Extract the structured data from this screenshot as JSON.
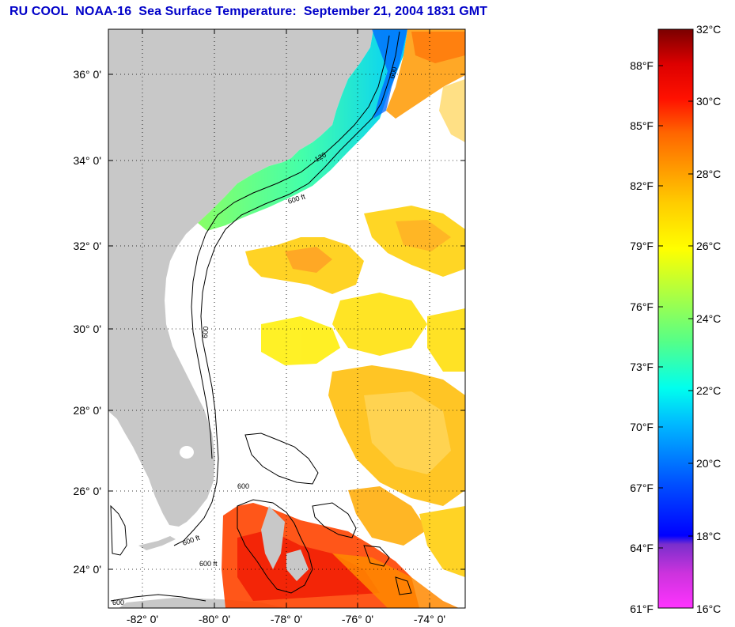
{
  "title": "RU COOL  NOAA-16  Sea Surface Temperature:  September 21, 2004 1831 GMT",
  "map": {
    "lat_labels": [
      "36° 0'",
      "34° 0'",
      "32° 0'",
      "30° 0'",
      "28° 0'",
      "26° 0'",
      "24° 0'"
    ],
    "lat_values": [
      36,
      34,
      32,
      30,
      28,
      26,
      24
    ],
    "lon_labels": [
      "-82° 0'",
      "-80° 0'",
      "-78° 0'",
      "-76° 0'",
      "-74° 0'"
    ],
    "lon_values": [
      -82,
      -80,
      -78,
      -76,
      -74
    ],
    "lat_range": [
      23,
      37
    ],
    "lon_range": [
      -83,
      -73
    ],
    "grid": "dotted",
    "land_color": "#c8c8c8",
    "contour_labels": [
      "600",
      "120",
      "600 ft",
      "600",
      "600",
      "600 ft",
      "600 ft",
      "600"
    ]
  },
  "colorbar": {
    "celsius_labels": [
      "32°C",
      "30°C",
      "28°C",
      "26°C",
      "24°C",
      "22°C",
      "20°C",
      "18°C",
      "16°C"
    ],
    "fahrenheit_labels": [
      "88°F",
      "85°F",
      "82°F",
      "79°F",
      "76°F",
      "73°F",
      "70°F",
      "67°F",
      "64°F",
      "61°F"
    ],
    "range_c": [
      16,
      32
    ],
    "colors": [
      "#ff33ff",
      "#9933cc",
      "#0000ff",
      "#0066ff",
      "#00ccff",
      "#00ffcc",
      "#66ff66",
      "#ccff33",
      "#ffff00",
      "#ffbb00",
      "#ff8800",
      "#ff3300",
      "#ee0000",
      "#800000"
    ]
  }
}
